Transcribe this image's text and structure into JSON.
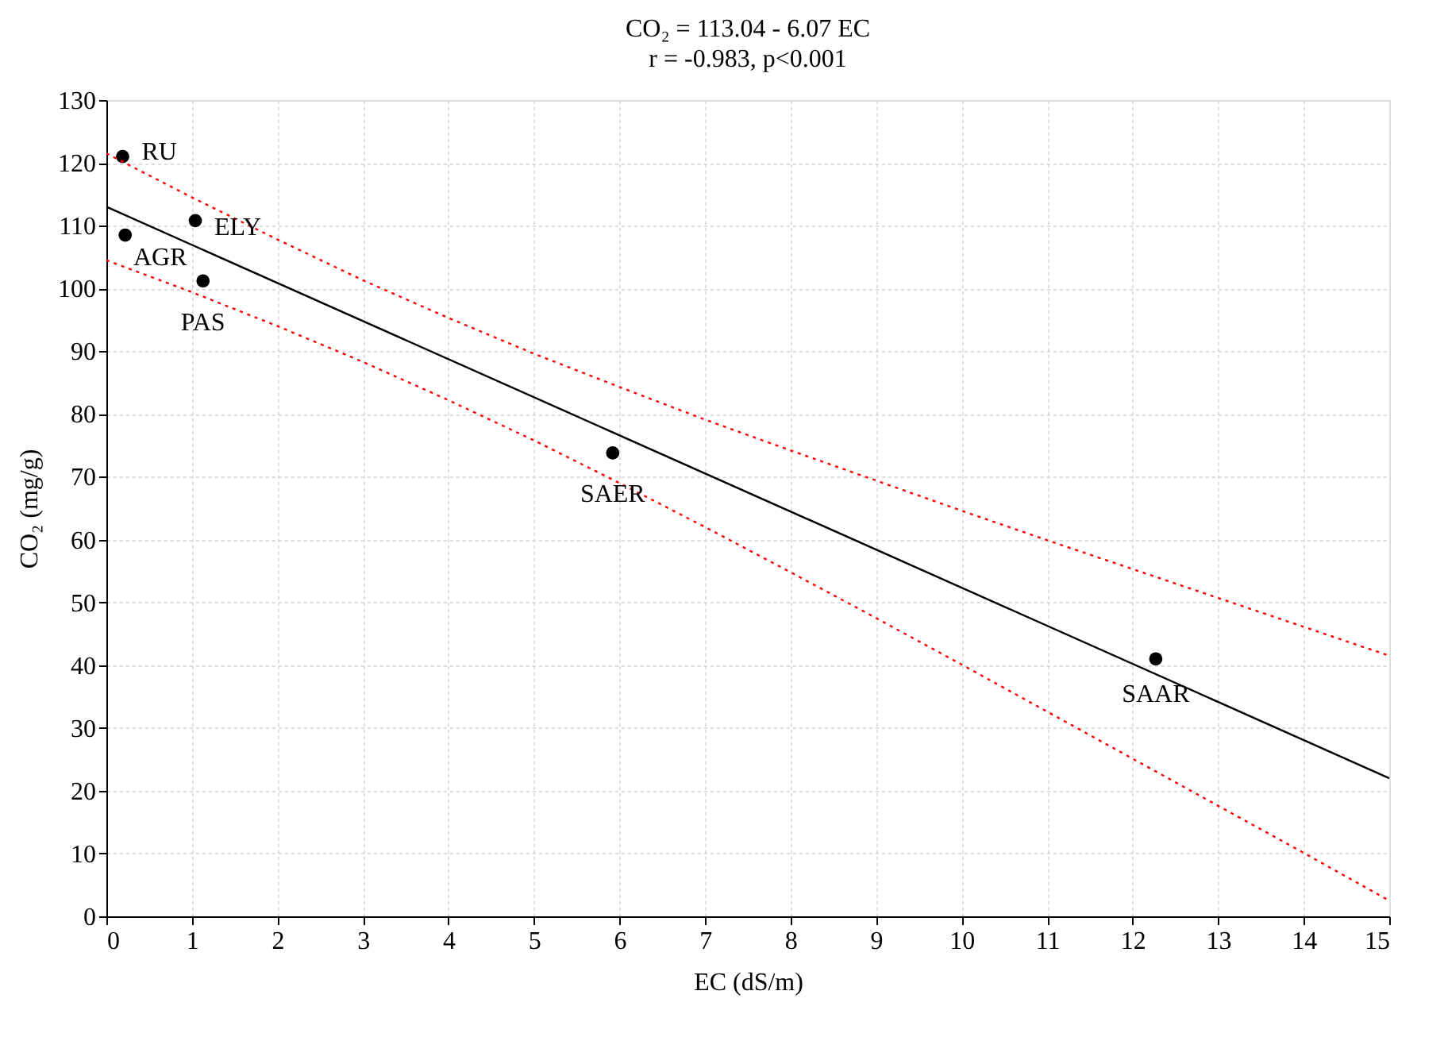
{
  "chart_data": {
    "type": "scatter",
    "title": "CO₂ = 113.04 - 6.07 EC",
    "subtitle": "r = -0.983, p<0.001",
    "xlabel": "EC (dS/m)",
    "ylabel": "CO₂ (mg/g)",
    "xlim": [
      0,
      15
    ],
    "xticks": [
      0,
      1,
      2,
      3,
      4,
      5,
      6,
      7,
      8,
      9,
      10,
      11,
      12,
      13,
      14,
      15
    ],
    "ylim": [
      0,
      130
    ],
    "yticks": [
      0,
      10,
      20,
      30,
      40,
      50,
      60,
      70,
      80,
      90,
      100,
      110,
      120,
      130
    ],
    "grid": true,
    "series": [
      {
        "color": "#000000",
        "marker": "circle",
        "x": [
          0.19,
          0.22,
          1.04,
          1.13,
          5.92,
          12.27
        ],
        "values": [
          121.0,
          108.5,
          110.8,
          101.2,
          73.8,
          41.0
        ]
      },
      {
        "type": "line",
        "color": "#000000",
        "line_style": "solid",
        "marker": "none",
        "x": [
          0,
          15
        ],
        "values": [
          113.0,
          22.0
        ]
      },
      {
        "type": "line",
        "color": "#ff0000",
        "line_style": "dotted",
        "marker": "none",
        "x": [
          0,
          1,
          2,
          3,
          4,
          5,
          6,
          7,
          8,
          9,
          10,
          11,
          12,
          13,
          14,
          15
        ],
        "values": [
          121.5,
          114.5,
          107.8,
          101.3,
          95.3,
          89.6,
          84.3,
          79.1,
          74.2,
          69.4,
          64.6,
          59.9,
          55.3,
          50.7,
          46.1,
          41.5
        ]
      },
      {
        "type": "line",
        "color": "#ff0000",
        "line_style": "dotted",
        "marker": "none",
        "x": [
          0,
          1,
          2,
          3,
          4,
          5,
          6,
          7,
          8,
          9,
          10,
          11,
          12,
          13,
          14,
          15
        ],
        "values": [
          104.5,
          99.4,
          94.0,
          88.3,
          82.2,
          75.8,
          69.0,
          62.0,
          54.8,
          47.5,
          40.1,
          32.6,
          25.1,
          17.6,
          10.1,
          2.5
        ]
      }
    ],
    "annotations": [
      {
        "text": "RU",
        "x": 0.19,
        "y": 121.0
      },
      {
        "text": "AGR",
        "x": 0.22,
        "y": 108.5
      },
      {
        "text": "ELY",
        "x": 1.04,
        "y": 110.8
      },
      {
        "text": "PAS",
        "x": 1.13,
        "y": 101.2
      },
      {
        "text": "SAER",
        "x": 5.92,
        "y": 73.8
      },
      {
        "text": "SAAR",
        "x": 12.27,
        "y": 41.0
      }
    ]
  }
}
